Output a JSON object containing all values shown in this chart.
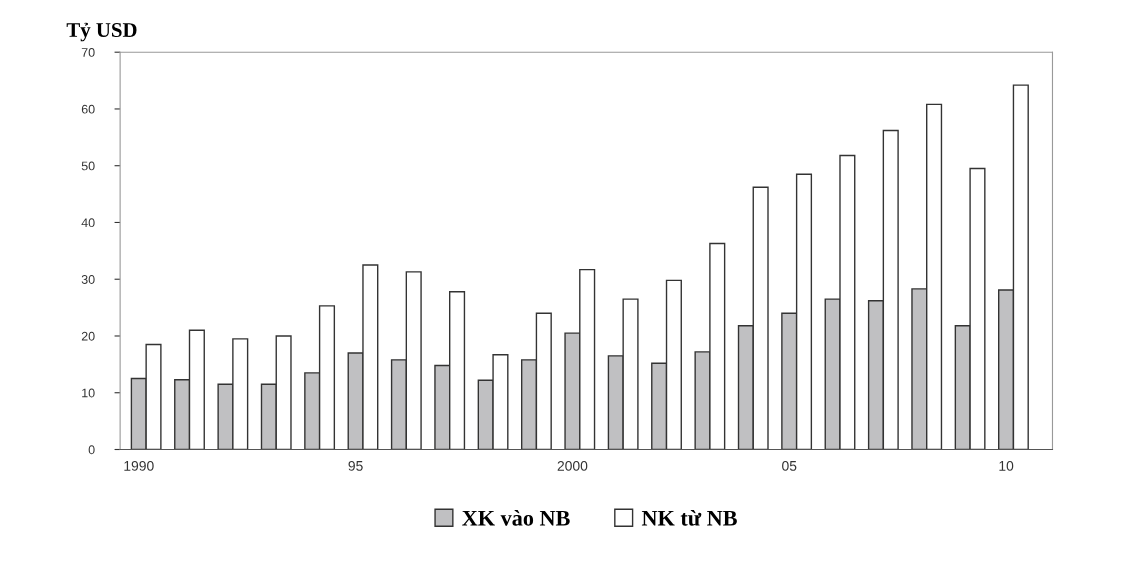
{
  "chart_data": {
    "type": "bar",
    "ylabel": "Tỷ USD",
    "categories": [
      "1990",
      null,
      null,
      null,
      null,
      "95",
      null,
      null,
      null,
      null,
      "2000",
      null,
      null,
      null,
      null,
      "05",
      null,
      null,
      null,
      null,
      "10"
    ],
    "series": [
      {
        "name": "XK vào NB",
        "color": "#c0c0c2",
        "values": [
          12.5,
          12.3,
          11.5,
          11.5,
          13.5,
          17,
          15.8,
          14.8,
          12.2,
          15.8,
          20.5,
          16.5,
          15.2,
          17.2,
          21.8,
          24,
          26.5,
          26.2,
          28.3,
          21.8,
          28.1
        ]
      },
      {
        "name": "NK từ NB",
        "color": "#ffffff",
        "values": [
          18.5,
          21,
          19.5,
          20,
          25.3,
          32.5,
          31.3,
          27.8,
          16.7,
          24,
          31.7,
          26.5,
          29.8,
          36.3,
          46.2,
          48.5,
          51.8,
          56.2,
          60.8,
          49.5,
          64.2
        ]
      }
    ],
    "ylim": [
      0,
      70
    ],
    "yticks": [
      0,
      10,
      20,
      30,
      40,
      50,
      60,
      70
    ],
    "grid": false,
    "legend": "bottom"
  }
}
